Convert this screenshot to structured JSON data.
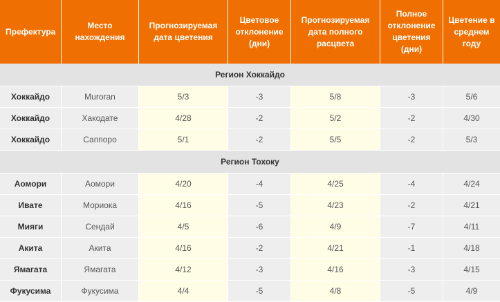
{
  "headers": [
    "Префектура",
    "Место нахождения",
    "Прогнозируемая дата цветения",
    "Цветовое отклонение (дни)",
    "Прогнозируемая дата полного расцвета",
    "Полное отклонение цветения (дни)",
    "Цветение в среднем году"
  ],
  "regions": [
    {
      "name": "Регион Хоккайдо",
      "rows": [
        [
          "Хоккайдо",
          "Muroran",
          "5/3",
          "-3",
          "5/8",
          "-3",
          "5/6"
        ],
        [
          "Хоккайдо",
          "Хакодате",
          "4/28",
          "-2",
          "5/2",
          "-2",
          "4/30"
        ],
        [
          "Хоккайдо",
          "Саппоро",
          "5/1",
          "-2",
          "5/5",
          "-2",
          "5/3"
        ]
      ]
    },
    {
      "name": "Регион Тохоку",
      "rows": [
        [
          "Аомори",
          "Аомори",
          "4/20",
          "-4",
          "4/25",
          "-4",
          "4/24"
        ],
        [
          "Ивате",
          "Мориока",
          "4/16",
          "-5",
          "4/23",
          "-2",
          "4/21"
        ],
        [
          "Мияги",
          "Сендай",
          "4/5",
          "-6",
          "4/9",
          "-7",
          "4/11"
        ],
        [
          "Акита",
          "Акита",
          "4/16",
          "-2",
          "4/21",
          "-1",
          "4/18"
        ],
        [
          "Ямагата",
          "Ямагата",
          "4/12",
          "-3",
          "4/16",
          "-3",
          "4/15"
        ],
        [
          "Фукусима",
          "Фукусима",
          "4/4",
          "-5",
          "4/8",
          "-5",
          "4/9"
        ]
      ]
    }
  ],
  "colors": {
    "header_bg": "#ef6f00",
    "region_bg": "#e3e3e3",
    "cell_bg": "#eeeeee",
    "highlight_bg": "#fffde6"
  }
}
